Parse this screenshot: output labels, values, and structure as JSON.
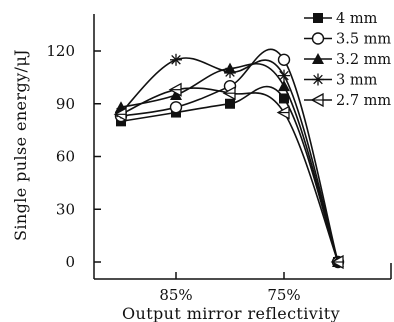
{
  "chart_data": {
    "type": "line",
    "categories": [
      "",
      "85%",
      "",
      "75%",
      ""
    ],
    "xlabel": "Output mirror reflectivity",
    "ylabel": "Single pulse energy/μJ",
    "ylim": [
      0,
      120
    ],
    "yticks": [
      0,
      30,
      60,
      90,
      120
    ],
    "ytick_labels": [
      "0",
      "30",
      "60",
      "90",
      "120"
    ],
    "grid": false,
    "legend_position": "top-right",
    "series": [
      {
        "name": "4 mm",
        "marker": "square-filled",
        "values": [
          80,
          85,
          90,
          93,
          0
        ]
      },
      {
        "name": "3.5 mm",
        "marker": "circle-open",
        "values": [
          83,
          88,
          100,
          115,
          0
        ]
      },
      {
        "name": "3.2 mm",
        "marker": "triangle-filled",
        "values": [
          88,
          95,
          110,
          100,
          0
        ]
      },
      {
        "name": "3 mm",
        "marker": "asterisk",
        "values": [
          85,
          115,
          108,
          106,
          0
        ]
      },
      {
        "name": "2.7 mm",
        "marker": "triangle-left",
        "values": [
          84,
          98,
          96,
          85,
          0
        ]
      }
    ],
    "line_color": "#111111"
  }
}
